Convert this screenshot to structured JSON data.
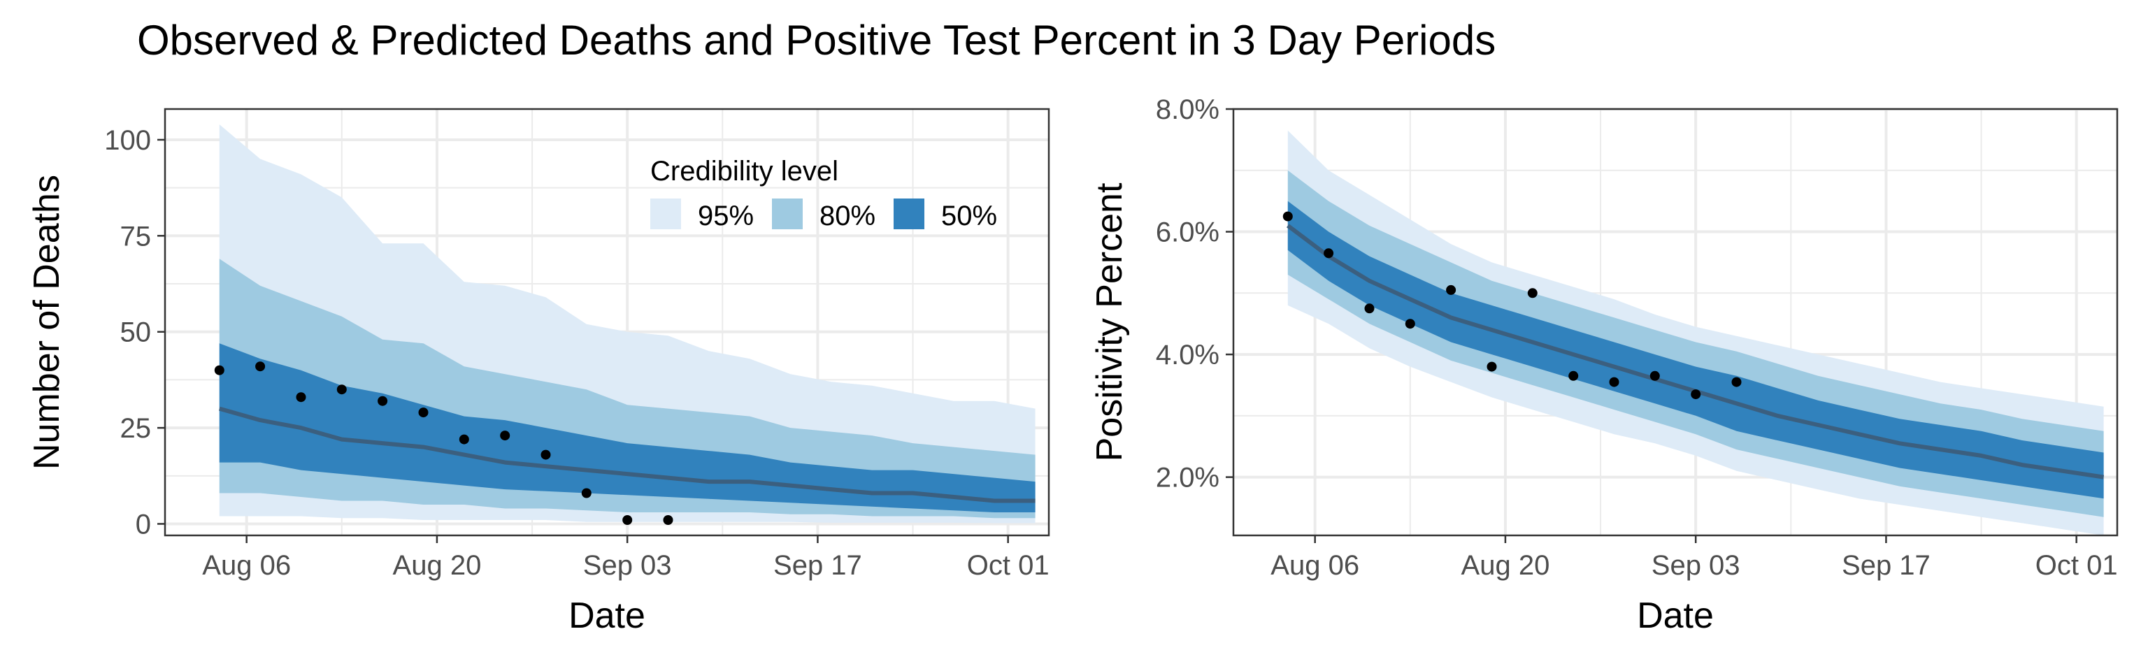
{
  "title": "Observed & Predicted Deaths and Positive Test Percent in 3 Day Periods",
  "colors": {
    "band95": "#deebf7",
    "band80": "#9ecae1",
    "band50": "#3182bd",
    "median": "#3b5f7f",
    "points": "#000000",
    "grid": "#ebebeb",
    "panel_border": "#333333"
  },
  "legend": {
    "title": "Credibility level",
    "items": [
      {
        "label": "95%",
        "color": "#deebf7"
      },
      {
        "label": "80%",
        "color": "#9ecae1"
      },
      {
        "label": "50%",
        "color": "#3182bd"
      }
    ],
    "placement": "inside-top-right of left panel"
  },
  "chart_data": [
    {
      "type": "area",
      "xlabel": "Date",
      "ylabel": "Number of Deaths",
      "x_tick_labels": [
        "Aug 06",
        "Aug 20",
        "Sep 03",
        "Sep 17",
        "Oct 01"
      ],
      "x_tick_dates": [
        "2020-08-06",
        "2020-08-20",
        "2020-09-03",
        "2020-09-17",
        "2020-10-01"
      ],
      "xlim": [
        "2020-07-31",
        "2020-10-04"
      ],
      "y_tick_labels": [
        "0",
        "25",
        "50",
        "75",
        "100"
      ],
      "y_ticks": [
        0,
        25,
        50,
        75,
        100
      ],
      "ylim": [
        -3,
        108
      ],
      "grid": true,
      "dates": [
        "2020-08-04",
        "2020-08-07",
        "2020-08-10",
        "2020-08-13",
        "2020-08-16",
        "2020-08-19",
        "2020-08-22",
        "2020-08-25",
        "2020-08-28",
        "2020-08-31",
        "2020-09-03",
        "2020-09-06",
        "2020-09-09",
        "2020-09-12",
        "2020-09-15",
        "2020-09-18",
        "2020-09-21",
        "2020-09-24",
        "2020-09-27",
        "2020-09-30",
        "2020-10-03"
      ],
      "median": [
        30,
        27,
        25,
        22,
        21,
        20,
        18,
        16,
        15,
        14,
        13,
        12,
        11,
        11,
        10,
        9,
        8,
        8,
        7,
        6,
        6
      ],
      "lo50": [
        16,
        16,
        14,
        13,
        12,
        11,
        10,
        9,
        8.5,
        8,
        7.5,
        7,
        6.5,
        6,
        5.5,
        5,
        4.5,
        4,
        3.5,
        3,
        3
      ],
      "hi50": [
        47,
        43,
        40,
        36,
        34,
        31,
        28,
        27,
        25,
        23,
        21,
        20,
        19,
        18,
        16,
        15,
        14,
        14,
        13,
        12,
        11
      ],
      "lo80": [
        8,
        8,
        7,
        6,
        6,
        5,
        5,
        4,
        4,
        3.5,
        3,
        3,
        3,
        3,
        2.5,
        2.5,
        2,
        2,
        2,
        1.5,
        1.5
      ],
      "hi80": [
        69,
        62,
        58,
        54,
        48,
        47,
        41,
        39,
        37,
        35,
        31,
        30,
        29,
        28,
        25,
        24,
        23,
        21,
        20,
        19,
        18
      ],
      "lo95": [
        2,
        2,
        2,
        1.5,
        1.5,
        1,
        1,
        1,
        1,
        0.5,
        0.5,
        0.5,
        0.5,
        0.5,
        0.5,
        0.3,
        0.3,
        0.3,
        0.3,
        0.2,
        0.2
      ],
      "hi95": [
        104,
        95,
        91,
        85,
        73,
        73,
        63,
        62,
        59,
        52,
        50,
        49,
        45,
        43,
        39,
        37,
        36,
        34,
        32,
        32,
        30
      ],
      "observed": {
        "dates": [
          "2020-08-04",
          "2020-08-07",
          "2020-08-10",
          "2020-08-13",
          "2020-08-16",
          "2020-08-19",
          "2020-08-22",
          "2020-08-25",
          "2020-08-28",
          "2020-08-31",
          "2020-09-03",
          "2020-09-06"
        ],
        "values": [
          40,
          41,
          33,
          35,
          32,
          29,
          22,
          23,
          18,
          8,
          1,
          1
        ]
      }
    },
    {
      "type": "area",
      "xlabel": "Date",
      "ylabel": "Positivity Percent",
      "x_tick_labels": [
        "Aug 06",
        "Aug 20",
        "Sep 03",
        "Sep 17",
        "Oct 01"
      ],
      "x_tick_dates": [
        "2020-08-06",
        "2020-08-20",
        "2020-09-03",
        "2020-09-17",
        "2020-10-01"
      ],
      "xlim": [
        "2020-07-31",
        "2020-10-04"
      ],
      "y_tick_labels": [
        "2.0%",
        "4.0%",
        "6.0%",
        "8.0%"
      ],
      "y_ticks": [
        2,
        4,
        6,
        8
      ],
      "ylim": [
        1.05,
        8.0
      ],
      "grid": true,
      "dates": [
        "2020-08-04",
        "2020-08-07",
        "2020-08-10",
        "2020-08-13",
        "2020-08-16",
        "2020-08-19",
        "2020-08-22",
        "2020-08-25",
        "2020-08-28",
        "2020-08-31",
        "2020-09-03",
        "2020-09-06",
        "2020-09-09",
        "2020-09-12",
        "2020-09-15",
        "2020-09-18",
        "2020-09-21",
        "2020-09-24",
        "2020-09-27",
        "2020-09-30",
        "2020-10-03"
      ],
      "median": [
        6.1,
        5.6,
        5.2,
        4.9,
        4.6,
        4.4,
        4.2,
        4.0,
        3.8,
        3.6,
        3.4,
        3.2,
        3.0,
        2.85,
        2.7,
        2.55,
        2.45,
        2.35,
        2.2,
        2.1,
        2.0
      ],
      "lo50": [
        5.7,
        5.2,
        4.8,
        4.5,
        4.2,
        4.0,
        3.8,
        3.6,
        3.4,
        3.2,
        3.0,
        2.75,
        2.6,
        2.45,
        2.3,
        2.15,
        2.05,
        1.95,
        1.85,
        1.75,
        1.65
      ],
      "hi50": [
        6.5,
        6.0,
        5.6,
        5.3,
        5.0,
        4.8,
        4.6,
        4.4,
        4.2,
        4.0,
        3.8,
        3.65,
        3.45,
        3.25,
        3.1,
        2.95,
        2.85,
        2.75,
        2.6,
        2.5,
        2.4
      ],
      "lo80": [
        5.3,
        4.9,
        4.5,
        4.2,
        3.9,
        3.7,
        3.5,
        3.3,
        3.1,
        2.9,
        2.7,
        2.45,
        2.3,
        2.15,
        2.0,
        1.85,
        1.75,
        1.65,
        1.55,
        1.45,
        1.35
      ],
      "hi80": [
        7.0,
        6.5,
        6.1,
        5.8,
        5.5,
        5.2,
        5.0,
        4.8,
        4.6,
        4.4,
        4.2,
        4.05,
        3.85,
        3.65,
        3.5,
        3.35,
        3.2,
        3.1,
        2.95,
        2.85,
        2.75
      ],
      "lo95": [
        4.8,
        4.5,
        4.1,
        3.8,
        3.55,
        3.3,
        3.1,
        2.9,
        2.7,
        2.55,
        2.35,
        2.1,
        1.95,
        1.8,
        1.65,
        1.55,
        1.45,
        1.35,
        1.25,
        1.15,
        1.05
      ],
      "hi95": [
        7.65,
        7.0,
        6.6,
        6.2,
        5.8,
        5.5,
        5.3,
        5.1,
        4.9,
        4.65,
        4.45,
        4.3,
        4.15,
        4.0,
        3.85,
        3.7,
        3.55,
        3.45,
        3.35,
        3.25,
        3.15
      ],
      "observed": {
        "dates": [
          "2020-08-04",
          "2020-08-07",
          "2020-08-10",
          "2020-08-13",
          "2020-08-16",
          "2020-08-19",
          "2020-08-22",
          "2020-08-25",
          "2020-08-28",
          "2020-08-31",
          "2020-09-03",
          "2020-09-06"
        ],
        "values": [
          6.25,
          5.65,
          4.75,
          4.5,
          5.05,
          3.8,
          5.0,
          3.65,
          3.55,
          3.65,
          3.35,
          3.55
        ]
      }
    }
  ]
}
